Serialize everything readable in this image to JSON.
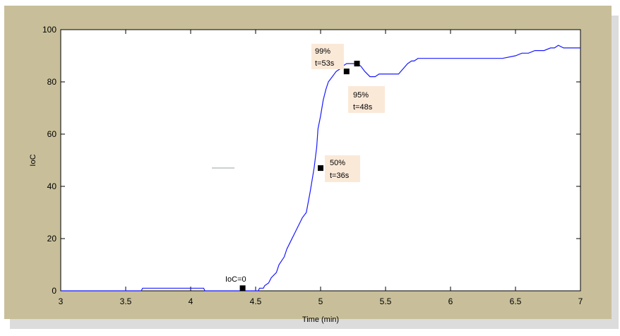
{
  "chart_data": {
    "type": "line",
    "title": "",
    "xlabel": "Time (min)",
    "ylabel": "IoC",
    "xlim": [
      3,
      7
    ],
    "ylim": [
      0,
      100
    ],
    "xticks": [
      "3",
      "3.5",
      "4",
      "4.5",
      "5",
      "5.5",
      "6",
      "6.5",
      "7"
    ],
    "yticks": [
      "0",
      "20",
      "40",
      "60",
      "80",
      "100"
    ],
    "grid": false,
    "colors": {
      "line": "#1a1aff",
      "plot_bg": "#ffffff",
      "frame_bg": "#c8bf9a",
      "annotation_bg": "#fbe9d8"
    },
    "series": [
      {
        "x": [
          3.0,
          3.62,
          3.63,
          4.1,
          4.11,
          4.52,
          4.53,
          4.56,
          4.57,
          4.6,
          4.62,
          4.66,
          4.68,
          4.72,
          4.74,
          4.77,
          4.8,
          4.83,
          4.86,
          4.89,
          4.92,
          4.95,
          4.97,
          4.98,
          5.0,
          5.02,
          5.04,
          5.06,
          5.09,
          5.12,
          5.15,
          5.17,
          5.2,
          5.22,
          5.25,
          5.28,
          5.31,
          5.34,
          5.38,
          5.42,
          5.45,
          5.5,
          5.6,
          5.67,
          5.7,
          5.72,
          5.75,
          5.8,
          5.85,
          6.0,
          6.2,
          6.4,
          6.5,
          6.55,
          6.6,
          6.65,
          6.72,
          6.77,
          6.8,
          6.83,
          6.87,
          7.0
        ],
        "y": [
          0,
          0,
          1,
          1,
          0,
          0,
          1,
          1,
          2,
          3,
          5,
          7,
          10,
          13,
          16,
          19,
          22,
          25,
          28,
          30,
          38,
          47,
          55,
          62,
          67,
          73,
          77,
          80,
          82,
          84,
          85,
          86,
          87,
          87,
          87,
          87,
          86,
          84,
          82,
          82,
          83,
          83,
          83,
          87,
          88,
          88,
          89,
          89,
          89,
          89,
          89,
          89,
          90,
          91,
          91,
          92,
          92,
          93,
          93,
          94,
          93,
          93
        ]
      }
    ],
    "markers": [
      {
        "x": 4.4,
        "y": 1
      },
      {
        "x": 5.0,
        "y": 47
      },
      {
        "x": 5.2,
        "y": 84
      },
      {
        "x": 5.28,
        "y": 87
      }
    ],
    "annotations": [
      {
        "id": "ioc0",
        "lines": [
          "IoC=0"
        ],
        "boxed": false
      },
      {
        "id": "p50",
        "lines": [
          "50%",
          "t=36s"
        ],
        "boxed": true
      },
      {
        "id": "p95",
        "lines": [
          "95%",
          "t=48s"
        ],
        "boxed": true
      },
      {
        "id": "p99",
        "lines": [
          "99%",
          "t=53s"
        ],
        "boxed": true
      }
    ]
  }
}
